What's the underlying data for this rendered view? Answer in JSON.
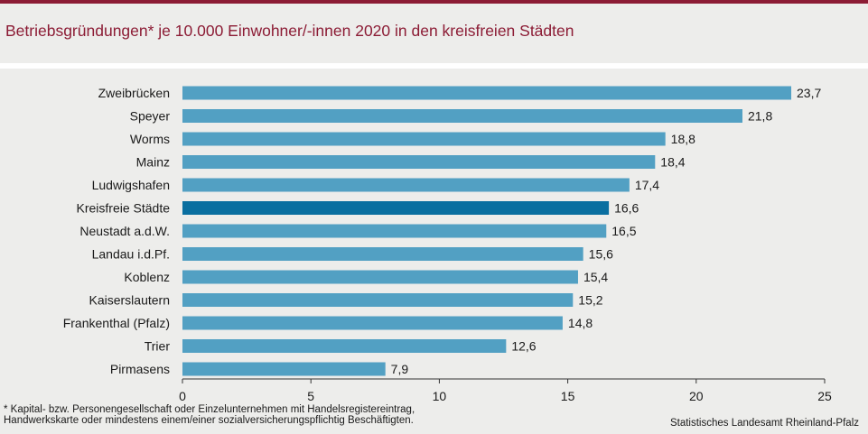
{
  "title": "Betriebsgründungen* je 10.000 Einwohner/-innen 2020  in den kreisfreien Städten",
  "footnote": "* Kapital- bzw. Personengesellschaft  oder Einzelunternehmen  mit  Handelsregistereintrag,\nHandwerkskarte  oder mindestens einem/einer  sozialversicherungspflichtig  Beschäftigten.",
  "source": "Statistisches Landesamt Rheinland-Pfalz",
  "colors": {
    "bar": "#52a0c3",
    "highlight": "#0a6fa0",
    "title": "#8c1c35",
    "background": "#ededeb"
  },
  "chart_data": {
    "type": "bar",
    "orientation": "horizontal",
    "categories": [
      "Zweibrücken",
      "Speyer",
      "Worms",
      "Mainz",
      "Ludwigshafen",
      "Kreisfreie Städte",
      "Neustadt a.d.W.",
      "Landau i.d.Pf.",
      "Koblenz",
      "Kaiserslautern",
      "Frankenthal (Pfalz)",
      "Trier",
      "Pirmasens"
    ],
    "values": [
      23.7,
      21.8,
      18.8,
      18.4,
      17.4,
      16.6,
      16.5,
      15.6,
      15.4,
      15.2,
      14.8,
      12.6,
      7.9
    ],
    "value_labels": [
      "23,7",
      "21,8",
      "18,8",
      "18,4",
      "17,4",
      "16,6",
      "16,5",
      "15,6",
      "15,4",
      "15,2",
      "14,8",
      "12,6",
      "7,9"
    ],
    "highlight": "Kreisfreie Städte",
    "xlim": [
      0,
      25
    ],
    "xticks": [
      0,
      5,
      10,
      15,
      20,
      25
    ],
    "xlabel": "",
    "ylabel": ""
  }
}
